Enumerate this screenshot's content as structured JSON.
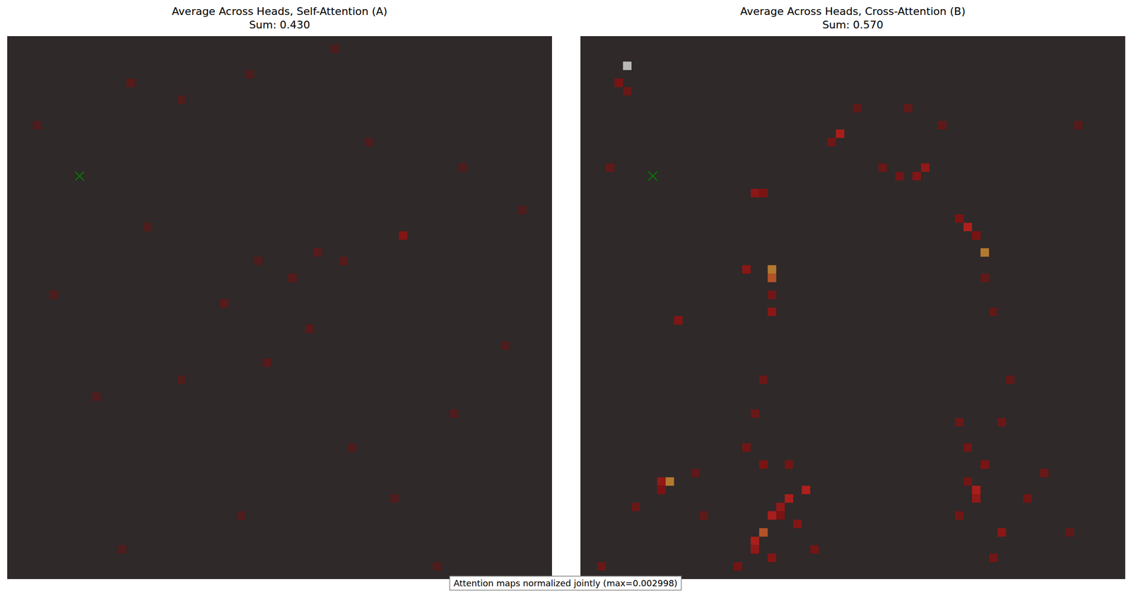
{
  "chart_data": [
    {
      "type": "heatmap",
      "title": "Average Across Heads, Self-Attention (A)",
      "subtitle": "Sum: 0.430",
      "xlim": [
        0,
        64
      ],
      "ylim": [
        64,
        0
      ],
      "tick_labels": false,
      "grid": false,
      "color_range": [
        0,
        0.002998
      ],
      "query_point": {
        "x": 8.5,
        "y": 16.5,
        "marker": "x",
        "color": "green"
      },
      "cells": [
        [
          46,
          23,
          0.001
        ],
        [
          35,
          34,
          0.0005
        ],
        [
          25,
          31,
          0.0005
        ],
        [
          14,
          5,
          0.0005
        ],
        [
          20,
          7,
          0.0004
        ],
        [
          28,
          4,
          0.0004
        ],
        [
          38,
          1,
          0.0004
        ],
        [
          36,
          25,
          0.0005
        ],
        [
          33,
          28,
          0.0005
        ],
        [
          30,
          38,
          0.0005
        ],
        [
          20,
          40,
          0.0004
        ],
        [
          45,
          54,
          0.0004
        ],
        [
          52,
          44,
          0.0004
        ],
        [
          10,
          42,
          0.0004
        ],
        [
          5,
          30,
          0.0004
        ],
        [
          58,
          36,
          0.0004
        ],
        [
          27,
          56,
          0.0004
        ],
        [
          40,
          48,
          0.0004
        ],
        [
          13,
          60,
          0.0004
        ],
        [
          50,
          62,
          0.0004
        ],
        [
          3,
          10,
          0.0004
        ],
        [
          60,
          20,
          0.0004
        ],
        [
          42,
          12,
          0.0004
        ],
        [
          16,
          22,
          0.0004
        ],
        [
          29,
          26,
          0.0004
        ],
        [
          39,
          26,
          0.0005
        ],
        [
          53,
          15,
          0.0004
        ]
      ]
    },
    {
      "type": "heatmap",
      "title": "Average Across Heads, Cross-Attention (B)",
      "subtitle": "Sum: 0.570",
      "xlim": [
        0,
        64
      ],
      "ylim": [
        64,
        0
      ],
      "tick_labels": false,
      "grid": false,
      "color_range": [
        0,
        0.002998
      ],
      "query_point": {
        "x": 8.5,
        "y": 16.5,
        "marker": "x",
        "color": "green"
      },
      "cells": [
        [
          5,
          3,
          0.003
        ],
        [
          30,
          11,
          0.0015
        ],
        [
          40,
          15,
          0.0012
        ],
        [
          39,
          16,
          0.001
        ],
        [
          37,
          16,
          0.0008
        ],
        [
          35,
          15,
          0.0007
        ],
        [
          20,
          18,
          0.0011
        ],
        [
          21,
          18,
          0.0009
        ],
        [
          45,
          22,
          0.0016
        ],
        [
          47,
          25,
          0.0021
        ],
        [
          46,
          23,
          0.0009
        ],
        [
          22,
          27,
          0.0021
        ],
        [
          22,
          28,
          0.0019
        ],
        [
          19,
          27,
          0.0011
        ],
        [
          22,
          32,
          0.0011
        ],
        [
          22,
          30,
          0.0008
        ],
        [
          11,
          33,
          0.001
        ],
        [
          10,
          52,
          0.0021
        ],
        [
          9,
          52,
          0.0012
        ],
        [
          9,
          53,
          0.0009
        ],
        [
          26,
          53,
          0.0016
        ],
        [
          24,
          54,
          0.0015
        ],
        [
          23,
          55,
          0.0012
        ],
        [
          23,
          56,
          0.0009
        ],
        [
          22,
          56,
          0.0015
        ],
        [
          21,
          58,
          0.0019
        ],
        [
          20,
          59,
          0.0015
        ],
        [
          20,
          60,
          0.0012
        ],
        [
          46,
          53,
          0.0015
        ],
        [
          46,
          54,
          0.0012
        ],
        [
          45,
          52,
          0.0008
        ],
        [
          49,
          58,
          0.0011
        ],
        [
          4,
          5,
          0.0009
        ],
        [
          5,
          6,
          0.0007
        ],
        [
          29,
          12,
          0.0008
        ],
        [
          44,
          21,
          0.0009
        ],
        [
          47,
          28,
          0.0006
        ],
        [
          48,
          32,
          0.0006
        ],
        [
          21,
          40,
          0.0007
        ],
        [
          20,
          44,
          0.0007
        ],
        [
          19,
          48,
          0.0008
        ],
        [
          21,
          50,
          0.0009
        ],
        [
          24,
          50,
          0.0008
        ],
        [
          25,
          57,
          0.001
        ],
        [
          22,
          61,
          0.001
        ],
        [
          27,
          60,
          0.0008
        ],
        [
          18,
          62,
          0.0008
        ],
        [
          44,
          45,
          0.0007
        ],
        [
          45,
          48,
          0.0008
        ],
        [
          47,
          50,
          0.0009
        ],
        [
          44,
          56,
          0.0008
        ],
        [
          48,
          61,
          0.0008
        ],
        [
          52,
          54,
          0.0008
        ],
        [
          54,
          51,
          0.0007
        ],
        [
          57,
          58,
          0.0006
        ],
        [
          2,
          62,
          0.0007
        ],
        [
          6,
          55,
          0.0007
        ],
        [
          13,
          51,
          0.0006
        ],
        [
          14,
          56,
          0.0006
        ],
        [
          49,
          45,
          0.0007
        ],
        [
          50,
          40,
          0.0006
        ],
        [
          32,
          8,
          0.0006
        ],
        [
          38,
          8,
          0.0006
        ],
        [
          42,
          10,
          0.0006
        ],
        [
          58,
          10,
          0.0005
        ],
        [
          3,
          15,
          0.0006
        ]
      ]
    }
  ],
  "annotation": "Attention maps normalized jointly (max=0.002998)"
}
